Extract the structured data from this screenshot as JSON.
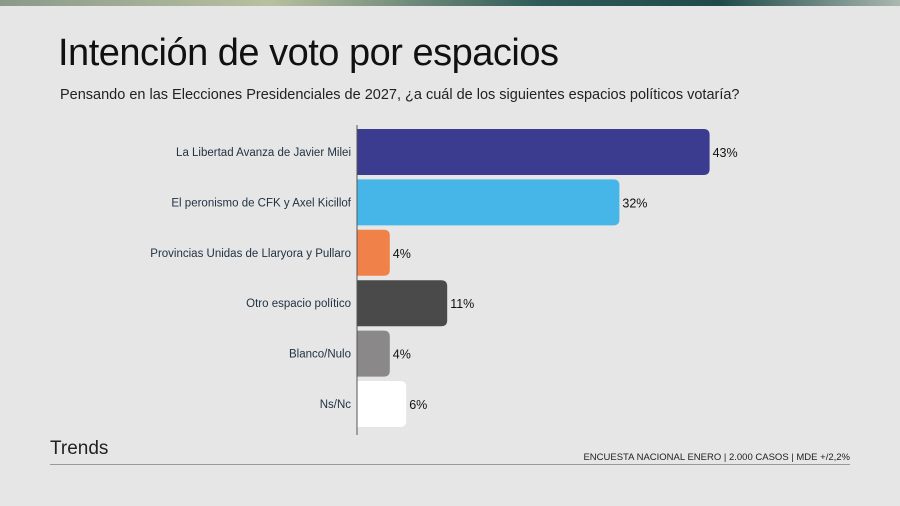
{
  "chart_data": {
    "type": "bar",
    "orientation": "horizontal",
    "title": "Intención de voto por espacios",
    "subtitle": "Pensando en las Elecciones Presidenciales de 2027, ¿a cuál de los siguientes espacios políticos votaría?",
    "categories": [
      "La Libertad Avanza de Javier Milei",
      "El peronismo de CFK y Axel Kicillof",
      "Provincias Unidas de Llaryora y Pullaro",
      "Otro espacio político",
      "Blanco/Nulo",
      "Ns/Nc"
    ],
    "values": [
      43,
      32,
      4,
      11,
      4,
      6
    ],
    "value_labels": [
      "43%",
      "32%",
      "4%",
      "11%",
      "4%",
      "6%"
    ],
    "colors": [
      "#3b3b8f",
      "#46b6e9",
      "#ef8149",
      "#4a4a4a",
      "#8a8888",
      "#ffffff"
    ],
    "unit": "%",
    "grid": false
  },
  "footer": {
    "brand": "Trends",
    "source": "ENCUESTA NACIONAL ENERO | 2.000 CASOS | MDE +/2,2%"
  }
}
